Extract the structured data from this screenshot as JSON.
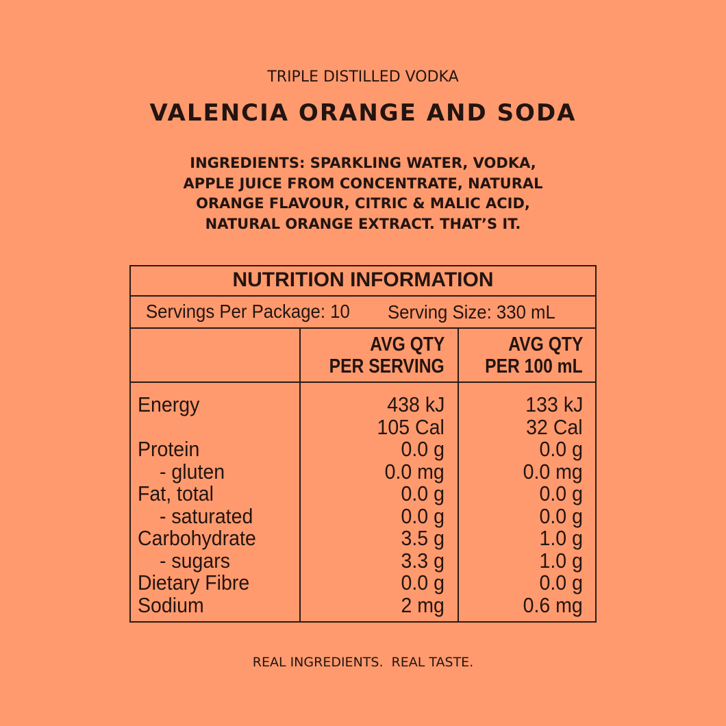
{
  "header": {
    "subtitle": "TRIPLE DISTILLED VODKA",
    "title": "VALENCIA ORANGE AND SODA"
  },
  "ingredients": [
    "INGREDIENTS: SPARKLING WATER, VODKA,",
    "APPLE JUICE FROM CONCENTRATE, NATURAL",
    "ORANGE FLAVOUR, CITRIC & MALIC ACID,",
    "NATURAL ORANGE EXTRACT. THAT’S IT."
  ],
  "table": {
    "title": "NUTRITION INFORMATION",
    "servings_per_package": "Servings Per Package: 10",
    "serving_size": "Serving Size: 330 mL",
    "columns": [
      [
        "AVG QTY",
        "PER SERVING"
      ],
      [
        "AVG QTY",
        "PER 100 mL"
      ]
    ],
    "rows": [
      [
        "Energy",
        [
          "438 kJ",
          "105 Cal"
        ],
        [
          "133 kJ",
          "32 Cal"
        ]
      ],
      [
        "Protein",
        [
          "0.0 g"
        ],
        [
          "0.0 g"
        ]
      ],
      [
        "- gluten",
        [
          "0.0 mg"
        ],
        [
          "0.0 mg"
        ]
      ],
      [
        "Fat, total",
        [
          "0.0 g"
        ],
        [
          "0.0 g"
        ]
      ],
      [
        "- saturated",
        [
          "0.0 g"
        ],
        [
          "0.0 g"
        ]
      ],
      [
        "Carbohydrate",
        [
          "3.5 g"
        ],
        [
          "1.0 g"
        ]
      ],
      [
        "- sugars",
        [
          "3.3 g"
        ],
        [
          "1.0 g"
        ]
      ],
      [
        "Dietary Fibre",
        [
          "0.0 g"
        ],
        [
          "0.0 g"
        ]
      ],
      [
        "Sodium",
        [
          "2 mg"
        ],
        [
          "0.6 mg"
        ]
      ]
    ]
  },
  "footer": "REAL INGREDIENTS.  REAL TASTE."
}
